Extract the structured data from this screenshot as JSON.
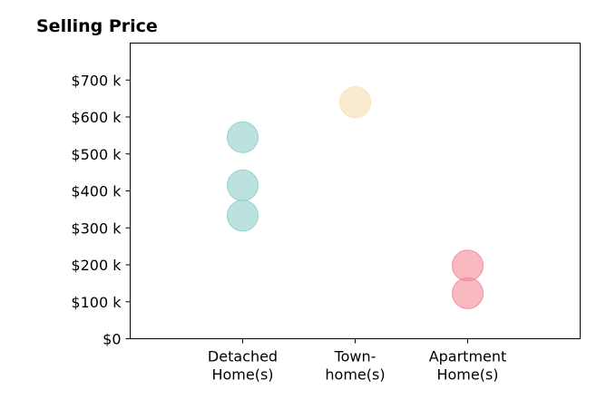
{
  "chart_data": {
    "type": "scatter",
    "title": "Selling Price",
    "xlabel": "",
    "ylabel": "",
    "categories": [
      [
        "Detached",
        "Home(s)"
      ],
      [
        "Town-",
        "home(s)"
      ],
      [
        "Apartment",
        "Home(s)"
      ]
    ],
    "yticks": [
      {
        "value": 0,
        "label": "$0"
      },
      {
        "value": 100,
        "label": "$100 k"
      },
      {
        "value": 200,
        "label": "$200 k"
      },
      {
        "value": 300,
        "label": "$300 k"
      },
      {
        "value": 400,
        "label": "$400 k"
      },
      {
        "value": 500,
        "label": "$500 k"
      },
      {
        "value": 600,
        "label": "$600 k"
      },
      {
        "value": 700,
        "label": "$700 k"
      }
    ],
    "ylim": [
      0,
      800
    ],
    "xlim": [
      0,
      4
    ],
    "grid": false,
    "series": [
      {
        "category": 0,
        "color": "#8ecfc9",
        "values": [
          545,
          415,
          333
        ]
      },
      {
        "category": 1,
        "color": "#f6deb0",
        "values": [
          640
        ]
      },
      {
        "category": 2,
        "color": "#f38a98",
        "values": [
          198,
          123
        ]
      }
    ]
  }
}
